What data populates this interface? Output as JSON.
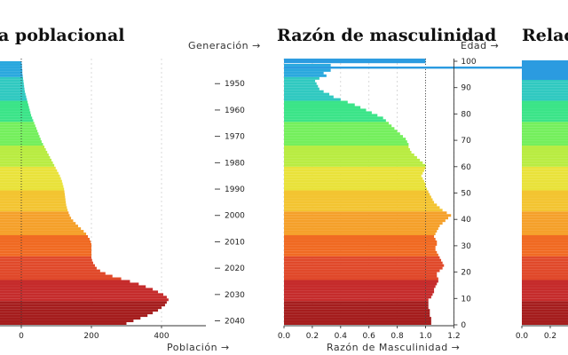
{
  "titles": {
    "left": "ra poblacional",
    "middle": "Razón de masculinidad",
    "right": "Relaci"
  },
  "labels": {
    "generacion": "Generación →",
    "edad": "Edad →",
    "poblacion": "Población →",
    "razon": "Razón de Masculinidad →"
  },
  "colors": {
    "band_scale": [
      "#a51d1d",
      "#c52b2b",
      "#e0492a",
      "#f06a22",
      "#f5a02a",
      "#f3c431",
      "#e9e23a",
      "#b9ec42",
      "#74ef5c",
      "#3be488",
      "#30c9c0",
      "#2aa8de"
    ],
    "highlight": "#2b9be0"
  },
  "chart_data": [
    {
      "type": "bar",
      "orientation": "horizontal",
      "title": "ra poblacional",
      "xlabel": "Población",
      "x_ticks": [
        0,
        200,
        400
      ],
      "generation_ticks": [
        1950,
        1960,
        1970,
        1980,
        1990,
        2000,
        2010,
        2020,
        2030,
        2040
      ],
      "ages": [
        0,
        1,
        2,
        3,
        4,
        5,
        6,
        7,
        8,
        9,
        10,
        11,
        12,
        13,
        14,
        15,
        16,
        17,
        18,
        19,
        20,
        21,
        22,
        23,
        24,
        25,
        26,
        27,
        28,
        29,
        30,
        31,
        32,
        33,
        34,
        35,
        36,
        37,
        38,
        39,
        40,
        41,
        42,
        43,
        44,
        45,
        46,
        47,
        48,
        49,
        50,
        51,
        52,
        53,
        54,
        55,
        56,
        57,
        58,
        59,
        60,
        61,
        62,
        63,
        64,
        65,
        66,
        67,
        68,
        69,
        70,
        71,
        72,
        73,
        74,
        75,
        76,
        77,
        78,
        79,
        80,
        81,
        82,
        83,
        84,
        85,
        86,
        87,
        88,
        89,
        90,
        91,
        92,
        93,
        94,
        95,
        96,
        97,
        98,
        99
      ],
      "values": [
        300,
        320,
        340,
        360,
        375,
        390,
        400,
        410,
        415,
        420,
        415,
        405,
        390,
        375,
        355,
        335,
        310,
        285,
        260,
        240,
        225,
        215,
        210,
        205,
        202,
        200,
        200,
        200,
        200,
        200,
        200,
        198,
        195,
        190,
        185,
        178,
        170,
        162,
        155,
        148,
        142,
        138,
        135,
        132,
        130,
        128,
        127,
        126,
        125,
        124,
        123,
        122,
        120,
        118,
        116,
        113,
        110,
        106,
        102,
        98,
        94,
        90,
        86,
        82,
        78,
        74,
        70,
        66,
        62,
        58,
        55,
        52,
        49,
        46,
        43,
        40,
        37,
        34,
        31,
        28,
        26,
        24,
        22,
        20,
        18,
        16,
        14,
        12,
        10,
        9,
        8,
        7,
        6,
        5,
        4,
        3,
        3,
        2,
        2,
        1
      ]
    },
    {
      "type": "bar",
      "orientation": "horizontal",
      "title": "Razón de masculinidad",
      "xlabel": "Razón de Masculinidad",
      "ylabel": "Edad",
      "x_ticks": [
        0.0,
        0.2,
        0.4,
        0.6,
        0.8,
        1.0,
        1.2
      ],
      "y_ticks": [
        0,
        10,
        20,
        30,
        40,
        50,
        60,
        70,
        80,
        90,
        100
      ],
      "xlim": [
        0,
        1.2
      ],
      "ages": [
        0,
        1,
        2,
        3,
        4,
        5,
        6,
        7,
        8,
        9,
        10,
        11,
        12,
        13,
        14,
        15,
        16,
        17,
        18,
        19,
        20,
        21,
        22,
        23,
        24,
        25,
        26,
        27,
        28,
        29,
        30,
        31,
        32,
        33,
        34,
        35,
        36,
        37,
        38,
        39,
        40,
        41,
        42,
        43,
        44,
        45,
        46,
        47,
        48,
        49,
        50,
        51,
        52,
        53,
        54,
        55,
        56,
        57,
        58,
        59,
        60,
        61,
        62,
        63,
        64,
        65,
        66,
        67,
        68,
        69,
        70,
        71,
        72,
        73,
        74,
        75,
        76,
        77,
        78,
        79,
        80,
        81,
        82,
        83,
        84,
        85,
        86,
        87,
        88,
        89,
        90,
        91,
        92,
        93,
        94,
        95,
        96,
        97,
        98,
        99,
        100
      ],
      "values": [
        1.04,
        1.04,
        1.04,
        1.03,
        1.03,
        1.03,
        1.02,
        1.02,
        1.02,
        1.02,
        1.04,
        1.05,
        1.06,
        1.06,
        1.07,
        1.08,
        1.09,
        1.09,
        1.08,
        1.08,
        1.1,
        1.12,
        1.13,
        1.12,
        1.11,
        1.1,
        1.09,
        1.08,
        1.07,
        1.07,
        1.08,
        1.08,
        1.07,
        1.06,
        1.07,
        1.08,
        1.09,
        1.1,
        1.12,
        1.14,
        1.16,
        1.18,
        1.15,
        1.12,
        1.1,
        1.08,
        1.06,
        1.05,
        1.04,
        1.03,
        1.02,
        1.01,
        1.0,
        1.0,
        0.99,
        0.98,
        0.97,
        0.98,
        0.99,
        1.0,
        1.0,
        0.98,
        0.96,
        0.94,
        0.92,
        0.9,
        0.89,
        0.88,
        0.88,
        0.87,
        0.86,
        0.84,
        0.82,
        0.8,
        0.78,
        0.76,
        0.74,
        0.72,
        0.7,
        0.66,
        0.62,
        0.58,
        0.54,
        0.5,
        0.45,
        0.4,
        0.35,
        0.32,
        0.28,
        0.25,
        0.24,
        0.23,
        0.22,
        0.25,
        0.3,
        0.28,
        0.33,
        0.33,
        0.33,
        1.0,
        1.0
      ]
    },
    {
      "type": "bar",
      "orientation": "horizontal",
      "title": "Relaci",
      "x_ticks": [
        0.0,
        0.2
      ]
    }
  ]
}
